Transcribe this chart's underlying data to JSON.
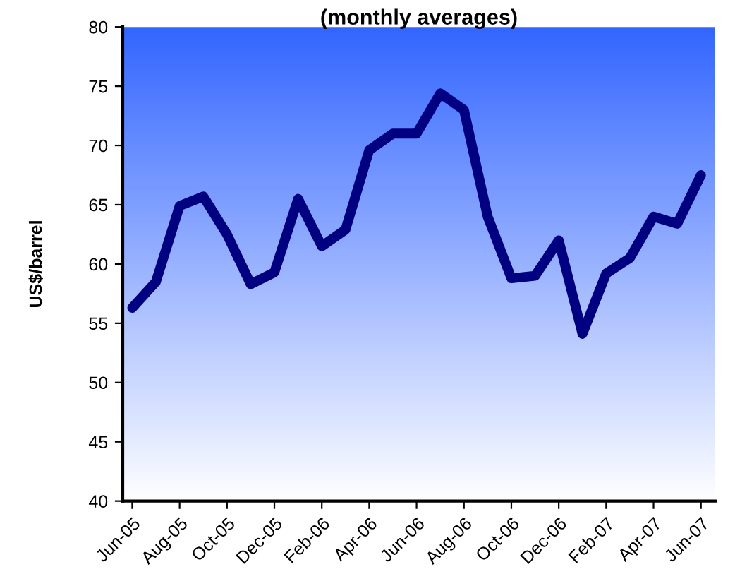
{
  "chart_data": {
    "type": "line",
    "title": "(monthly averages)",
    "ylabel": "US$/barrel",
    "categories": [
      "Jun-05",
      null,
      "Aug-05",
      null,
      "Oct-05",
      null,
      "Dec-05",
      null,
      "Feb-06",
      null,
      "Apr-06",
      null,
      "Jun-06",
      null,
      "Aug-06",
      null,
      "Oct-06",
      null,
      "Dec-06",
      null,
      "Feb-07",
      null,
      "Apr-07",
      null,
      "Jun-07"
    ],
    "series": [
      {
        "color": "#000080",
        "values": [
          56.3,
          58.5,
          64.9,
          65.7,
          62.5,
          58.3,
          59.3,
          65.5,
          61.5,
          62.9,
          69.6,
          71,
          71,
          74.4,
          73,
          64,
          58.8,
          59.0,
          62,
          54.1,
          59.2,
          60.5,
          64,
          63.4,
          67.5
        ]
      }
    ],
    "ylim": [
      40,
      80
    ],
    "yticks": [
      40,
      45,
      50,
      55,
      60,
      65,
      70,
      75,
      80
    ],
    "grid": false,
    "legend": false,
    "marker": "none",
    "line_style": "solid"
  }
}
